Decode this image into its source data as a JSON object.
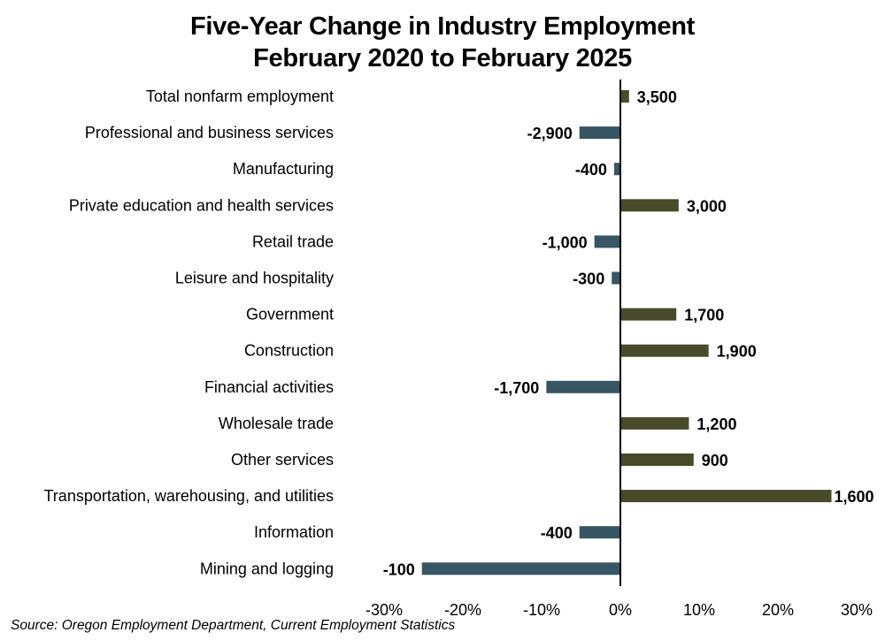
{
  "chart_data": {
    "type": "bar",
    "orientation": "horizontal",
    "title": "Five-Year Change in Industry Employment",
    "subtitle": "February 2020 to February 2025",
    "xlabel": "",
    "ylabel": "",
    "xlim": [
      -30,
      30
    ],
    "x_ticks": [
      "-30%",
      "-20%",
      "-10%",
      "0%",
      "10%",
      "20%",
      "30%"
    ],
    "x_tick_values": [
      -30,
      -20,
      -10,
      0,
      10,
      20,
      30
    ],
    "grid": false,
    "legend": "none",
    "colors": {
      "positive": "#474b2a",
      "negative": "#385563"
    },
    "categories": [
      "Total nonfarm employment",
      "Professional and business services",
      "Manufacturing",
      "Private education and health services",
      "Retail trade",
      "Leisure and hospitality",
      "Government",
      "Construction",
      "Financial activities",
      "Wholesale trade",
      "Other services",
      "Transportation, warehousing, and utilities",
      "Information",
      "Mining and logging"
    ],
    "values_percent": [
      1.1,
      -5.2,
      -0.8,
      7.4,
      -3.3,
      -1.1,
      7.1,
      11.2,
      -9.4,
      8.7,
      9.3,
      26.8,
      -5.2,
      -25.2
    ],
    "data_labels": [
      "3,500",
      "-2,900",
      "-400",
      "3,000",
      "-1,000",
      "-300",
      "1,700",
      "1,900",
      "-1,700",
      "1,200",
      "900",
      "1,600",
      "-400",
      "-100"
    ],
    "source": "Source: Oregon Employment Department, Current Employment Statistics"
  }
}
